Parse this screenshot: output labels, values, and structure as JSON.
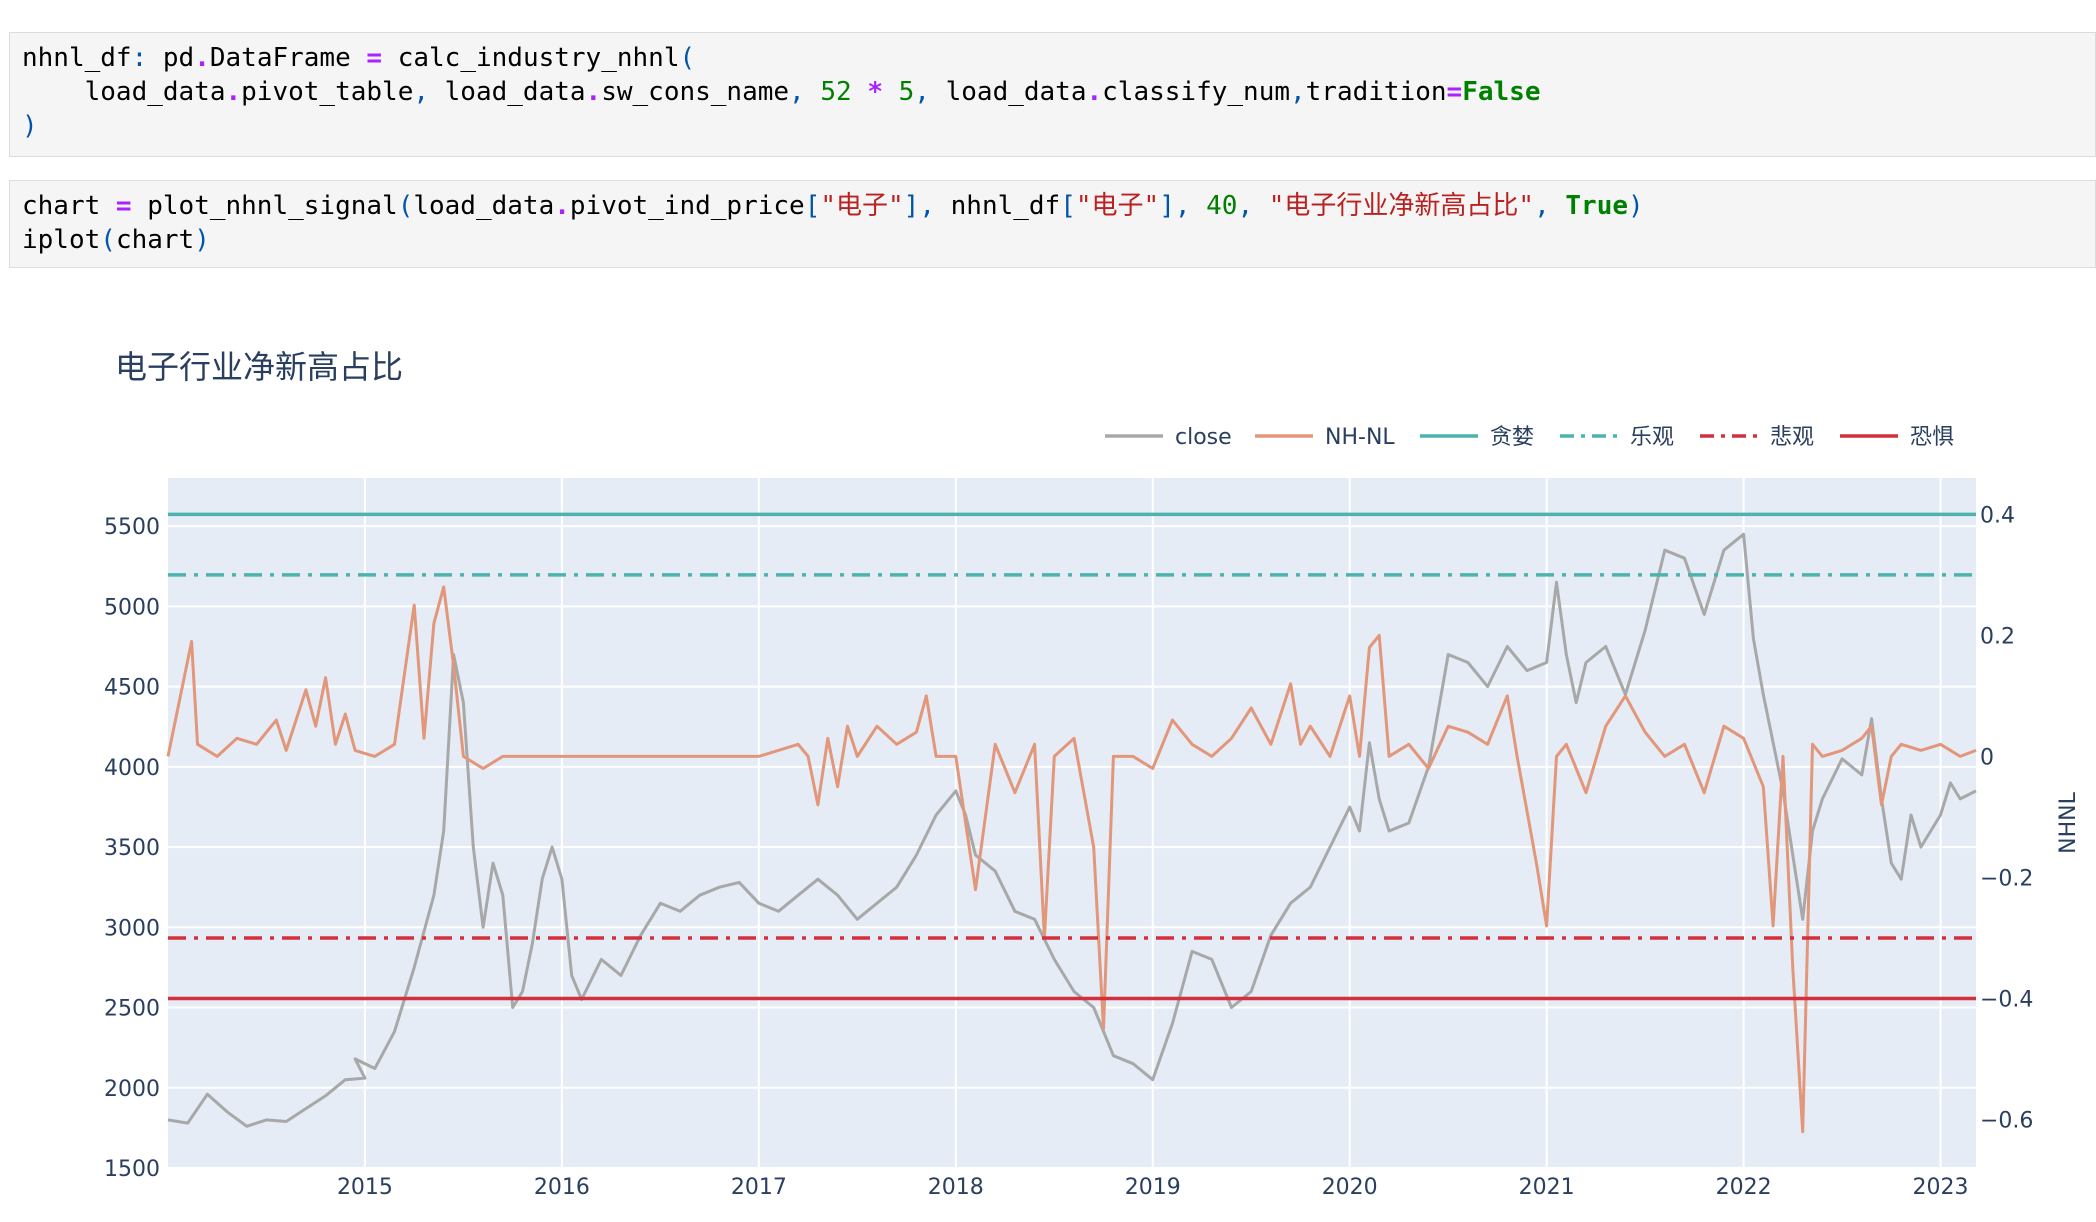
{
  "notebook": {
    "cell1_lines": [
      [
        [
          "",
          "nhnl_df"
        ],
        [
          "p",
          ":"
        ],
        [
          "",
          " pd"
        ],
        [
          "o",
          "."
        ],
        [
          "",
          "DataFrame "
        ],
        [
          "o",
          "="
        ],
        [
          "",
          " calc_industry_nhnl"
        ],
        [
          "p",
          "("
        ]
      ],
      [
        [
          "",
          "    load_data"
        ],
        [
          "o",
          "."
        ],
        [
          "",
          "pivot_table"
        ],
        [
          "p",
          ","
        ],
        [
          "",
          " load_data"
        ],
        [
          "o",
          "."
        ],
        [
          "",
          "sw_cons_name"
        ],
        [
          "p",
          ","
        ],
        [
          "",
          " "
        ],
        [
          "n",
          "52"
        ],
        [
          "",
          " "
        ],
        [
          "o",
          "*"
        ],
        [
          "",
          " "
        ],
        [
          "n",
          "5"
        ],
        [
          "p",
          ","
        ],
        [
          "",
          " load_data"
        ],
        [
          "o",
          "."
        ],
        [
          "",
          "classify_num"
        ],
        [
          "p",
          ","
        ],
        [
          "",
          "tradition"
        ],
        [
          "o",
          "="
        ],
        [
          "k",
          "False"
        ]
      ],
      [
        [
          "p",
          ")"
        ]
      ]
    ],
    "cell2_lines": [
      [
        [
          "",
          "chart "
        ],
        [
          "o",
          "="
        ],
        [
          "",
          " plot_nhnl_signal"
        ],
        [
          "p",
          "("
        ],
        [
          "",
          "load_data"
        ],
        [
          "o",
          "."
        ],
        [
          "",
          "pivot_ind_price"
        ],
        [
          "p",
          "["
        ],
        [
          "s",
          "\"电子\""
        ],
        [
          "p",
          "],"
        ],
        [
          "",
          " nhnl_df"
        ],
        [
          "p",
          "["
        ],
        [
          "s",
          "\"电子\""
        ],
        [
          "p",
          "],"
        ],
        [
          "",
          " "
        ],
        [
          "n",
          "40"
        ],
        [
          "p",
          ","
        ],
        [
          "",
          " "
        ],
        [
          "s",
          "\"电子行业净新高占比\""
        ],
        [
          "p",
          ","
        ],
        [
          "",
          " "
        ],
        [
          "k",
          "True"
        ],
        [
          "p",
          ")"
        ]
      ],
      [
        [
          "",
          "iplot"
        ],
        [
          "p",
          "("
        ],
        [
          "",
          "chart"
        ],
        [
          "p",
          ")"
        ]
      ]
    ]
  },
  "chart_data": {
    "type": "line",
    "title": "电子行业净新高占比",
    "x_tick_labels": [
      "2015",
      "2016",
      "2017",
      "2018",
      "2019",
      "2020",
      "2021",
      "2022",
      "2023"
    ],
    "x_range": [
      2014.0,
      2023.18
    ],
    "y_left": {
      "ticks": [
        5500,
        5000,
        4500,
        4000,
        3500,
        3000,
        2500,
        2000,
        1500
      ],
      "range": [
        1500,
        5800
      ]
    },
    "y_right": {
      "label": "NHNL",
      "ticks": [
        "0.4",
        "0.2",
        "0",
        "−0.2",
        "−0.4",
        "−0.6"
      ],
      "tick_values": [
        0.4,
        0.2,
        0,
        -0.2,
        -0.4,
        -0.6
      ],
      "range": [
        -0.68,
        0.46
      ]
    },
    "legend": {
      "placement": "top-right",
      "items": [
        {
          "name": "close",
          "color": "#a8a8a8",
          "dash": "solid"
        },
        {
          "name": "NH-NL",
          "color": "#e2967a",
          "dash": "solid"
        },
        {
          "name": "贪婪",
          "color": "#4db3ac",
          "dash": "solid"
        },
        {
          "name": "乐观",
          "color": "#4db3ac",
          "dash": "dashdot"
        },
        {
          "name": "悲观",
          "color": "#d32f3c",
          "dash": "dashdot"
        },
        {
          "name": "恐惧",
          "color": "#d32f3c",
          "dash": "solid"
        }
      ]
    },
    "thresholds": [
      {
        "name": "贪婪",
        "value": 0.4
      },
      {
        "name": "乐观",
        "value": 0.3
      },
      {
        "name": "悲观",
        "value": -0.3
      },
      {
        "name": "恐惧",
        "value": -0.4
      }
    ],
    "series": [
      {
        "name": "close",
        "axis": "left",
        "points": [
          [
            2014.0,
            1800
          ],
          [
            2014.1,
            1780
          ],
          [
            2014.2,
            1960
          ],
          [
            2014.3,
            1850
          ],
          [
            2014.4,
            1760
          ],
          [
            2014.5,
            1800
          ],
          [
            2014.6,
            1790
          ],
          [
            2014.7,
            1870
          ],
          [
            2014.8,
            1950
          ],
          [
            2014.9,
            2050
          ],
          [
            2015.0,
            2060
          ],
          [
            2014.95,
            2180
          ],
          [
            2015.05,
            2120
          ],
          [
            2015.15,
            2350
          ],
          [
            2015.25,
            2750
          ],
          [
            2015.35,
            3200
          ],
          [
            2015.4,
            3600
          ],
          [
            2015.45,
            4700
          ],
          [
            2015.5,
            4400
          ],
          [
            2015.55,
            3500
          ],
          [
            2015.6,
            3000
          ],
          [
            2015.65,
            3400
          ],
          [
            2015.7,
            3200
          ],
          [
            2015.75,
            2500
          ],
          [
            2015.8,
            2600
          ],
          [
            2015.85,
            2900
          ],
          [
            2015.9,
            3300
          ],
          [
            2015.95,
            3500
          ],
          [
            2016.0,
            3300
          ],
          [
            2016.05,
            2700
          ],
          [
            2016.1,
            2550
          ],
          [
            2016.2,
            2800
          ],
          [
            2016.3,
            2700
          ],
          [
            2016.4,
            2950
          ],
          [
            2016.5,
            3150
          ],
          [
            2016.6,
            3100
          ],
          [
            2016.7,
            3200
          ],
          [
            2016.8,
            3250
          ],
          [
            2016.9,
            3280
          ],
          [
            2017.0,
            3150
          ],
          [
            2017.1,
            3100
          ],
          [
            2017.2,
            3200
          ],
          [
            2017.3,
            3300
          ],
          [
            2017.4,
            3200
          ],
          [
            2017.5,
            3050
          ],
          [
            2017.6,
            3150
          ],
          [
            2017.7,
            3250
          ],
          [
            2017.8,
            3450
          ],
          [
            2017.9,
            3700
          ],
          [
            2018.0,
            3850
          ],
          [
            2018.05,
            3700
          ],
          [
            2018.1,
            3450
          ],
          [
            2018.2,
            3350
          ],
          [
            2018.3,
            3100
          ],
          [
            2018.4,
            3050
          ],
          [
            2018.5,
            2800
          ],
          [
            2018.6,
            2600
          ],
          [
            2018.7,
            2500
          ],
          [
            2018.8,
            2200
          ],
          [
            2018.9,
            2150
          ],
          [
            2019.0,
            2050
          ],
          [
            2019.1,
            2400
          ],
          [
            2019.2,
            2850
          ],
          [
            2019.3,
            2800
          ],
          [
            2019.4,
            2500
          ],
          [
            2019.5,
            2600
          ],
          [
            2019.6,
            2950
          ],
          [
            2019.7,
            3150
          ],
          [
            2019.8,
            3250
          ],
          [
            2019.9,
            3500
          ],
          [
            2020.0,
            3750
          ],
          [
            2020.05,
            3600
          ],
          [
            2020.1,
            4150
          ],
          [
            2020.15,
            3800
          ],
          [
            2020.2,
            3600
          ],
          [
            2020.3,
            3650
          ],
          [
            2020.4,
            4000
          ],
          [
            2020.5,
            4700
          ],
          [
            2020.6,
            4650
          ],
          [
            2020.7,
            4500
          ],
          [
            2020.8,
            4750
          ],
          [
            2020.9,
            4600
          ],
          [
            2021.0,
            4650
          ],
          [
            2021.05,
            5150
          ],
          [
            2021.1,
            4700
          ],
          [
            2021.15,
            4400
          ],
          [
            2021.2,
            4650
          ],
          [
            2021.3,
            4750
          ],
          [
            2021.4,
            4450
          ],
          [
            2021.5,
            4850
          ],
          [
            2021.6,
            5350
          ],
          [
            2021.7,
            5300
          ],
          [
            2021.8,
            4950
          ],
          [
            2021.9,
            5350
          ],
          [
            2022.0,
            5450
          ],
          [
            2022.05,
            4800
          ],
          [
            2022.1,
            4450
          ],
          [
            2022.2,
            3850
          ],
          [
            2022.25,
            3450
          ],
          [
            2022.3,
            3050
          ],
          [
            2022.35,
            3600
          ],
          [
            2022.4,
            3800
          ],
          [
            2022.5,
            4050
          ],
          [
            2022.6,
            3950
          ],
          [
            2022.65,
            4300
          ],
          [
            2022.7,
            3800
          ],
          [
            2022.75,
            3400
          ],
          [
            2022.8,
            3300
          ],
          [
            2022.85,
            3700
          ],
          [
            2022.9,
            3500
          ],
          [
            2022.95,
            3600
          ],
          [
            2023.0,
            3700
          ],
          [
            2023.05,
            3900
          ],
          [
            2023.1,
            3800
          ],
          [
            2023.18,
            3850
          ]
        ]
      },
      {
        "name": "NH-NL",
        "axis": "right",
        "points": [
          [
            2014.0,
            0.0
          ],
          [
            2014.12,
            0.19
          ],
          [
            2014.15,
            0.02
          ],
          [
            2014.25,
            0.0
          ],
          [
            2014.35,
            0.03
          ],
          [
            2014.45,
            0.02
          ],
          [
            2014.55,
            0.06
          ],
          [
            2014.6,
            0.01
          ],
          [
            2014.7,
            0.11
          ],
          [
            2014.75,
            0.05
          ],
          [
            2014.8,
            0.13
          ],
          [
            2014.85,
            0.02
          ],
          [
            2014.9,
            0.07
          ],
          [
            2014.95,
            0.01
          ],
          [
            2015.05,
            0.0
          ],
          [
            2015.15,
            0.02
          ],
          [
            2015.25,
            0.25
          ],
          [
            2015.3,
            0.03
          ],
          [
            2015.35,
            0.22
          ],
          [
            2015.4,
            0.28
          ],
          [
            2015.45,
            0.15
          ],
          [
            2015.5,
            0.0
          ],
          [
            2015.6,
            -0.02
          ],
          [
            2015.7,
            0.0
          ],
          [
            2016.0,
            0.0
          ],
          [
            2016.5,
            0.0
          ],
          [
            2017.0,
            0.0
          ],
          [
            2017.2,
            0.02
          ],
          [
            2017.25,
            0.0
          ],
          [
            2017.3,
            -0.08
          ],
          [
            2017.35,
            0.03
          ],
          [
            2017.4,
            -0.05
          ],
          [
            2017.45,
            0.05
          ],
          [
            2017.5,
            0.0
          ],
          [
            2017.6,
            0.05
          ],
          [
            2017.7,
            0.02
          ],
          [
            2017.8,
            0.04
          ],
          [
            2017.85,
            0.1
          ],
          [
            2017.9,
            0.0
          ],
          [
            2018.0,
            0.0
          ],
          [
            2018.1,
            -0.22
          ],
          [
            2018.2,
            0.02
          ],
          [
            2018.3,
            -0.06
          ],
          [
            2018.4,
            0.02
          ],
          [
            2018.45,
            -0.3
          ],
          [
            2018.5,
            0.0
          ],
          [
            2018.6,
            0.03
          ],
          [
            2018.7,
            -0.15
          ],
          [
            2018.75,
            -0.45
          ],
          [
            2018.8,
            0.0
          ],
          [
            2018.9,
            0.0
          ],
          [
            2019.0,
            -0.02
          ],
          [
            2019.1,
            0.06
          ],
          [
            2019.2,
            0.02
          ],
          [
            2019.3,
            0.0
          ],
          [
            2019.4,
            0.03
          ],
          [
            2019.5,
            0.08
          ],
          [
            2019.6,
            0.02
          ],
          [
            2019.7,
            0.12
          ],
          [
            2019.75,
            0.02
          ],
          [
            2019.8,
            0.05
          ],
          [
            2019.9,
            0.0
          ],
          [
            2020.0,
            0.1
          ],
          [
            2020.05,
            0.0
          ],
          [
            2020.1,
            0.18
          ],
          [
            2020.15,
            0.2
          ],
          [
            2020.2,
            0.0
          ],
          [
            2020.3,
            0.02
          ],
          [
            2020.4,
            -0.02
          ],
          [
            2020.5,
            0.05
          ],
          [
            2020.6,
            0.04
          ],
          [
            2020.7,
            0.02
          ],
          [
            2020.8,
            0.1
          ],
          [
            2020.85,
            0.0
          ],
          [
            2020.95,
            -0.18
          ],
          [
            2021.0,
            -0.28
          ],
          [
            2021.05,
            0.0
          ],
          [
            2021.1,
            0.02
          ],
          [
            2021.2,
            -0.06
          ],
          [
            2021.3,
            0.05
          ],
          [
            2021.4,
            0.1
          ],
          [
            2021.5,
            0.04
          ],
          [
            2021.6,
            0.0
          ],
          [
            2021.7,
            0.02
          ],
          [
            2021.8,
            -0.06
          ],
          [
            2021.9,
            0.05
          ],
          [
            2022.0,
            0.03
          ],
          [
            2022.1,
            -0.05
          ],
          [
            2022.15,
            -0.28
          ],
          [
            2022.2,
            0.0
          ],
          [
            2022.25,
            -0.35
          ],
          [
            2022.3,
            -0.62
          ],
          [
            2022.35,
            0.02
          ],
          [
            2022.4,
            0.0
          ],
          [
            2022.5,
            0.01
          ],
          [
            2022.6,
            0.03
          ],
          [
            2022.65,
            0.05
          ],
          [
            2022.7,
            -0.08
          ],
          [
            2022.75,
            0.0
          ],
          [
            2022.8,
            0.02
          ],
          [
            2022.9,
            0.01
          ],
          [
            2023.0,
            0.02
          ],
          [
            2023.1,
            0.0
          ],
          [
            2023.18,
            0.01
          ]
        ]
      }
    ]
  }
}
